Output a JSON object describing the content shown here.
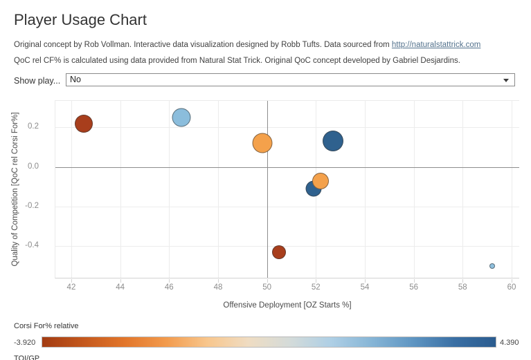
{
  "header": {
    "title": "Player Usage Chart",
    "desc_line1_prefix": "Original concept by Rob Vollman.  Interactive data visualization designed by Robb Tufts.  Data sourced from ",
    "desc_link": "http://naturalstattrick.com",
    "desc_line2": "QoC rel CF% is calculated using data provided from Natural Stat Trick.  Original QoC concept developed by Gabriel Desjardins."
  },
  "filter": {
    "label": "Show play...",
    "value": "No"
  },
  "chart_data": {
    "type": "scatter",
    "xlabel": "Offensive Deployment [OZ Starts %]",
    "ylabel": "Quality of Competition [QoC rel Corsi For%]",
    "xlim": [
      41.35,
      60.34
    ],
    "ylim": [
      -0.5655,
      0.3334
    ],
    "grid": true,
    "x_ticks": [
      42,
      44,
      46,
      48,
      50,
      52,
      54,
      56,
      58,
      60
    ],
    "y_ticks": [
      {
        "value": 0.2,
        "label": "0.2"
      },
      {
        "value": 0.0,
        "label": "0.0"
      },
      {
        "value": -0.2,
        "label": "-0.2"
      },
      {
        "value": -0.4,
        "label": "-0.4"
      }
    ],
    "x_ref_line": 50,
    "y_ref_line": 0.0,
    "points": [
      {
        "x": 42.5,
        "y": 0.22,
        "size": 26,
        "color": "#A83E1C"
      },
      {
        "x": 46.5,
        "y": 0.25,
        "size": 27,
        "color": "#8BBDDC"
      },
      {
        "x": 49.8,
        "y": 0.12,
        "size": 29,
        "color": "#F4A14B"
      },
      {
        "x": 52.7,
        "y": 0.13,
        "size": 30,
        "color": "#2F618E"
      },
      {
        "x": 51.9,
        "y": -0.11,
        "size": 23,
        "color": "#2F618E"
      },
      {
        "x": 52.2,
        "y": -0.07,
        "size": 24,
        "color": "#F4A14B"
      },
      {
        "x": 50.5,
        "y": -0.43,
        "size": 20,
        "color": "#A83E1C"
      },
      {
        "x": 59.2,
        "y": -0.5,
        "size": 8,
        "color": "#8FC0DE"
      }
    ]
  },
  "color_legend": {
    "title": "Corsi For% relative",
    "min_label": "-3.920",
    "max_label": "4.390",
    "gradient": [
      "#A23B12",
      "#C4581D",
      "#E2762B",
      "#F29A4C",
      "#F8C68C",
      "#EFDCC2",
      "#D4DBD9",
      "#AECFE5",
      "#86B5D6",
      "#5E95C2",
      "#3A6FA4",
      "#2B5C8F"
    ]
  },
  "size_legend": {
    "title": "TOI/GP"
  }
}
